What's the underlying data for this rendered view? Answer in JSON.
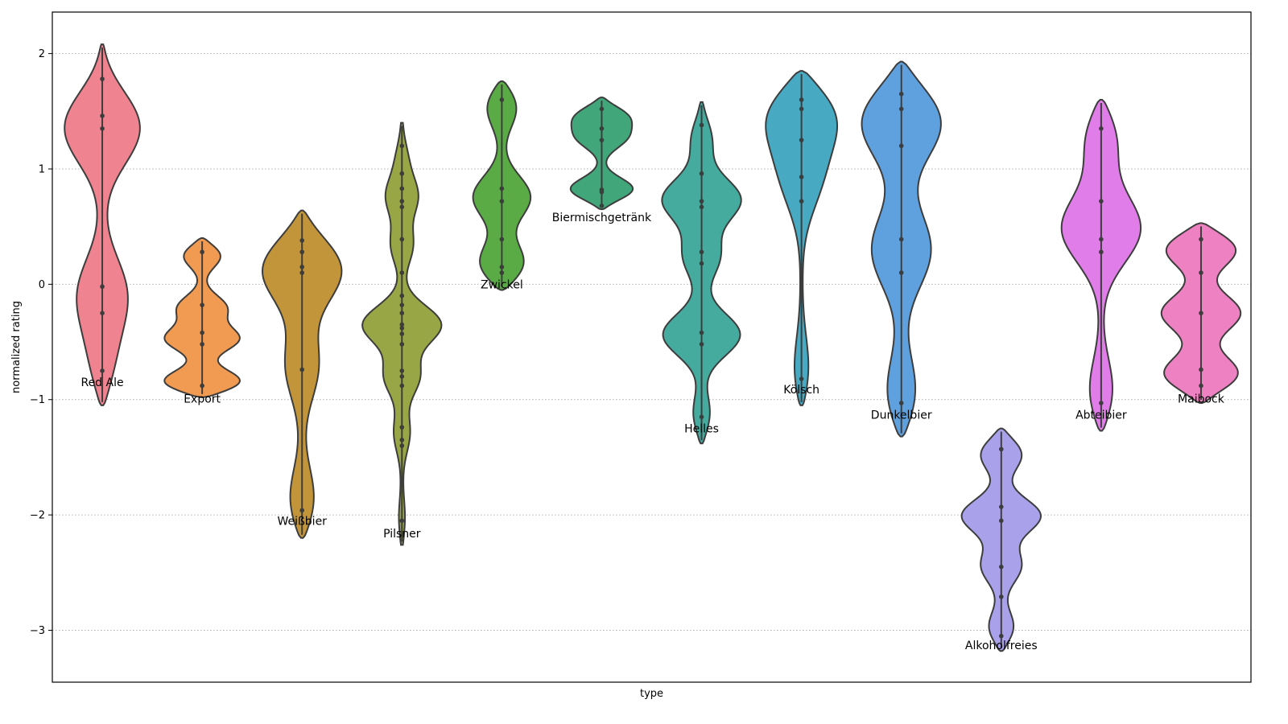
{
  "chart_data": {
    "type": "violin",
    "xlabel": "type",
    "ylabel": "normalized rating",
    "ylim": [
      -3.45,
      2.36
    ],
    "yticks": [
      2,
      1,
      0,
      -1,
      -2,
      -3
    ],
    "ytick_labels": [
      "2",
      "1",
      "0",
      "−1",
      "−2",
      "−3"
    ],
    "grid": "y-dotted",
    "x_ticks_shown": false,
    "series": [
      {
        "name": "Red Ale",
        "color": "#f08390",
        "range": [
          -1.05,
          2.08
        ],
        "modes": [
          [
            1.42,
            0.95
          ],
          [
            -0.12,
            0.52
          ],
          [
            -0.78,
            0.34
          ]
        ],
        "observations": [
          1.78,
          1.46,
          1.35,
          -0.02,
          -0.25,
          -0.75
        ],
        "label_y": -0.85
      },
      {
        "name": "Export",
        "color": "#f19a52",
        "range": [
          -0.98,
          0.4
        ],
        "modes": [
          [
            0.28,
            0.42
          ],
          [
            -0.2,
            0.3
          ],
          [
            -0.48,
            0.48
          ],
          [
            -0.88,
            0.95
          ]
        ],
        "observations": [
          0.28,
          -0.18,
          -0.42,
          -0.52,
          -0.88
        ],
        "label_y": -0.99
      },
      {
        "name": "Weißbier",
        "color": "#c2953a",
        "range": [
          -2.2,
          0.64
        ],
        "modes": [
          [
            0.2,
            1.0
          ],
          [
            -0.7,
            0.28
          ],
          [
            -1.97,
            0.36
          ]
        ],
        "observations": [
          0.38,
          0.28,
          0.15,
          0.1,
          -0.74,
          -1.96
        ],
        "label_y": -2.05
      },
      {
        "name": "Pilsner",
        "color": "#98a645",
        "range": [
          -2.26,
          1.4
        ],
        "modes": [
          [
            1.12,
            0.26
          ],
          [
            0.78,
            0.55
          ],
          [
            0.35,
            0.3
          ],
          [
            -0.35,
            1.0
          ],
          [
            -0.8,
            0.45
          ],
          [
            -1.3,
            0.22
          ],
          [
            -2.08,
            0.14
          ]
        ],
        "observations": [
          1.2,
          0.96,
          0.83,
          0.72,
          0.67,
          0.39,
          0.1,
          -0.1,
          -0.18,
          -0.25,
          -0.35,
          -0.38,
          -0.43,
          -0.52,
          -0.75,
          -0.8,
          -0.88,
          -1.24,
          -1.35,
          -1.4,
          -2.05
        ],
        "label_y": -2.16
      },
      {
        "name": "Zwickel",
        "color": "#5aab45",
        "range": [
          -0.05,
          1.76
        ],
        "modes": [
          [
            1.6,
            0.48
          ],
          [
            0.75,
            0.55
          ],
          [
            0.12,
            0.72
          ]
        ],
        "observations": [
          1.6,
          0.83,
          0.72,
          0.39,
          0.15,
          0.1
        ],
        "label_y": 0.0
      },
      {
        "name": "Biermischgetränk",
        "color": "#41a67a",
        "range": [
          0.65,
          1.62
        ],
        "modes": [
          [
            1.48,
            0.62
          ],
          [
            1.28,
            0.42
          ],
          [
            0.8,
            0.78
          ]
        ],
        "observations": [
          1.52,
          1.35,
          1.25,
          0.82,
          0.8,
          0.68
        ],
        "label_y": 0.58
      },
      {
        "name": "Helles",
        "color": "#44ab9e",
        "range": [
          -1.38,
          1.58
        ],
        "modes": [
          [
            1.3,
            0.4
          ],
          [
            0.75,
            1.0
          ],
          [
            0.25,
            0.4
          ],
          [
            -0.45,
            0.95
          ],
          [
            -1.18,
            0.36
          ]
        ],
        "observations": [
          1.38,
          0.96,
          0.72,
          0.67,
          0.28,
          0.18,
          -0.42,
          -0.52,
          -1.15
        ],
        "label_y": -1.25
      },
      {
        "name": "Kölsch",
        "color": "#47a9c2",
        "range": [
          -1.05,
          1.85
        ],
        "modes": [
          [
            1.55,
            0.9
          ],
          [
            0.95,
            0.32
          ],
          [
            -0.85,
            0.2
          ]
        ],
        "observations": [
          1.6,
          1.52,
          1.25,
          0.93,
          0.72,
          -0.82
        ],
        "label_y": -0.91
      },
      {
        "name": "Dunkelbier",
        "color": "#5ea1de",
        "range": [
          -1.32,
          1.93
        ],
        "modes": [
          [
            1.5,
            1.0
          ],
          [
            0.3,
            0.48
          ],
          [
            -1.05,
            0.4
          ]
        ],
        "observations": [
          1.65,
          1.52,
          1.2,
          0.39,
          0.1,
          -1.03
        ],
        "label_y": -1.13
      },
      {
        "name": "Alkoholfreies",
        "color": "#a9a2eb",
        "range": [
          -3.18,
          -1.25
        ],
        "modes": [
          [
            -1.43,
            0.9
          ],
          [
            -2.0,
            1.0
          ],
          [
            -2.45,
            0.5
          ],
          [
            -3.02,
            0.55
          ]
        ],
        "observations": [
          -1.43,
          -1.93,
          -2.05,
          -2.45,
          -2.71,
          -3.05
        ],
        "label_y": -3.13
      },
      {
        "name": "Abteibier",
        "color": "#e07de9",
        "range": [
          -1.27,
          1.6
        ],
        "modes": [
          [
            1.35,
            0.65
          ],
          [
            0.5,
            1.0
          ],
          [
            -1.03,
            0.48
          ]
        ],
        "observations": [
          1.35,
          0.72,
          0.39,
          0.28,
          -1.03
        ],
        "label_y": -1.13
      },
      {
        "name": "Maibock",
        "color": "#ee81c1",
        "range": [
          -1.03,
          0.53
        ],
        "modes": [
          [
            0.35,
            1.0
          ],
          [
            -0.25,
            0.7
          ],
          [
            -0.82,
            1.0
          ]
        ],
        "observations": [
          0.39,
          0.1,
          -0.25,
          -0.74,
          -0.88
        ],
        "label_y": -0.99
      }
    ]
  }
}
